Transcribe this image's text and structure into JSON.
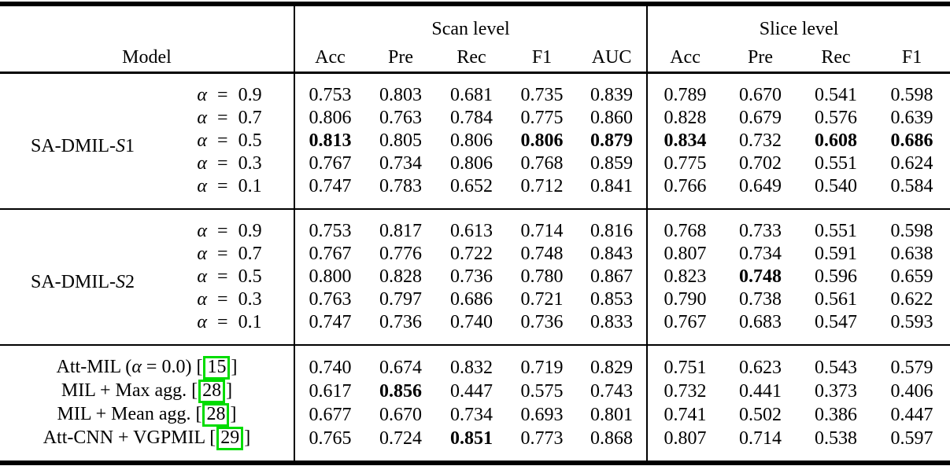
{
  "header": {
    "model": "Model",
    "scan_group": "Scan level",
    "slice_group": "Slice level",
    "scan_cols": [
      "Acc",
      "Pre",
      "Rec",
      "F1",
      "AUC"
    ],
    "slice_cols": [
      "Acc",
      "Pre",
      "Rec",
      "F1"
    ]
  },
  "cite_brackets": [
    "[",
    "]"
  ],
  "groups": [
    {
      "model": {
        "pre": "SA-DMIL-",
        "it": "S",
        "post": "1"
      },
      "rows": [
        {
          "alpha": {
            "it": "α",
            "post": " = 0.9"
          },
          "values": [
            "0.753",
            "0.803",
            "0.681",
            "0.735",
            "0.839",
            "0.789",
            "0.670",
            "0.541",
            "0.598"
          ],
          "bold": []
        },
        {
          "alpha": {
            "it": "α",
            "post": " = 0.7"
          },
          "values": [
            "0.806",
            "0.763",
            "0.784",
            "0.775",
            "0.860",
            "0.828",
            "0.679",
            "0.576",
            "0.639"
          ],
          "bold": []
        },
        {
          "alpha": {
            "it": "α",
            "post": " = 0.5"
          },
          "values": [
            "0.813",
            "0.805",
            "0.806",
            "0.806",
            "0.879",
            "0.834",
            "0.732",
            "0.608",
            "0.686"
          ],
          "bold": [
            0,
            3,
            4,
            5,
            7,
            8
          ]
        },
        {
          "alpha": {
            "it": "α",
            "post": " = 0.3"
          },
          "values": [
            "0.767",
            "0.734",
            "0.806",
            "0.768",
            "0.859",
            "0.775",
            "0.702",
            "0.551",
            "0.624"
          ],
          "bold": []
        },
        {
          "alpha": {
            "it": "α",
            "post": " = 0.1"
          },
          "values": [
            "0.747",
            "0.783",
            "0.652",
            "0.712",
            "0.841",
            "0.766",
            "0.649",
            "0.540",
            "0.584"
          ],
          "bold": []
        }
      ]
    },
    {
      "model": {
        "pre": "SA-DMIL-",
        "it": "S",
        "post": "2"
      },
      "rows": [
        {
          "alpha": {
            "it": "α",
            "post": " = 0.9"
          },
          "values": [
            "0.753",
            "0.817",
            "0.613",
            "0.714",
            "0.816",
            "0.768",
            "0.733",
            "0.551",
            "0.598"
          ],
          "bold": []
        },
        {
          "alpha": {
            "it": "α",
            "post": " = 0.7"
          },
          "values": [
            "0.767",
            "0.776",
            "0.722",
            "0.748",
            "0.843",
            "0.807",
            "0.734",
            "0.591",
            "0.638"
          ],
          "bold": []
        },
        {
          "alpha": {
            "it": "α",
            "post": " = 0.5"
          },
          "values": [
            "0.800",
            "0.828",
            "0.736",
            "0.780",
            "0.867",
            "0.823",
            "0.748",
            "0.596",
            "0.659"
          ],
          "bold": [
            6
          ]
        },
        {
          "alpha": {
            "it": "α",
            "post": " = 0.3"
          },
          "values": [
            "0.763",
            "0.797",
            "0.686",
            "0.721",
            "0.853",
            "0.790",
            "0.738",
            "0.561",
            "0.622"
          ],
          "bold": []
        },
        {
          "alpha": {
            "it": "α",
            "post": " = 0.1"
          },
          "values": [
            "0.747",
            "0.736",
            "0.740",
            "0.736",
            "0.833",
            "0.767",
            "0.683",
            "0.547",
            "0.593"
          ],
          "bold": []
        }
      ]
    }
  ],
  "baselines": [
    {
      "label": {
        "pre": "Att-MIL (",
        "it": "α",
        "post": " = 0.0) "
      },
      "cite": "15",
      "values": [
        "0.740",
        "0.674",
        "0.832",
        "0.719",
        "0.829",
        "0.751",
        "0.623",
        "0.543",
        "0.579"
      ],
      "bold": []
    },
    {
      "label": {
        "pre": "MIL + Max agg. ",
        "it": "",
        "post": ""
      },
      "cite": "28",
      "values": [
        "0.617",
        "0.856",
        "0.447",
        "0.575",
        "0.743",
        "0.732",
        "0.441",
        "0.373",
        "0.406"
      ],
      "bold": [
        1
      ]
    },
    {
      "label": {
        "pre": "MIL + Mean agg. ",
        "it": "",
        "post": ""
      },
      "cite": "28",
      "values": [
        "0.677",
        "0.670",
        "0.734",
        "0.693",
        "0.801",
        "0.741",
        "0.502",
        "0.386",
        "0.447"
      ],
      "bold": []
    },
    {
      "label": {
        "pre": "Att-CNN + VGPMIL ",
        "it": "",
        "post": ""
      },
      "cite": "29",
      "values": [
        "0.765",
        "0.724",
        "0.851",
        "0.773",
        "0.868",
        "0.807",
        "0.714",
        "0.538",
        "0.597"
      ],
      "bold": [
        2
      ]
    }
  ],
  "colors": {
    "cite_border": "#00DC00",
    "rule": "#000000",
    "background": "#FFFFFF",
    "text": "#000000"
  }
}
